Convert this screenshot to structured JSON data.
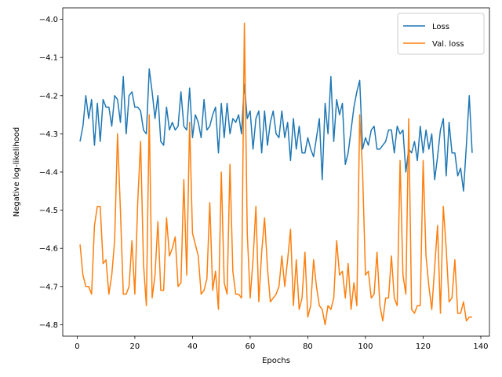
{
  "chart_data": {
    "type": "line",
    "title": "",
    "xlabel": "Epochs",
    "ylabel": "Negative log-likelihood",
    "xlim": [
      -5,
      143
    ],
    "ylim": [
      -4.83,
      -3.97
    ],
    "xticks": [
      0,
      20,
      40,
      60,
      80,
      100,
      120,
      140
    ],
    "yticks": [
      -4.8,
      -4.7,
      -4.6,
      -4.5,
      -4.4,
      -4.3,
      -4.2,
      -4.1,
      -4.0
    ],
    "ytick_labels": [
      "−4.8",
      "−4.7",
      "−4.6",
      "−4.5",
      "−4.4",
      "−4.3",
      "−4.2",
      "−4.1",
      "−4.0"
    ],
    "legend_position": "upper-right",
    "grid": false,
    "colors": {
      "loss": "#1f77b4",
      "val_loss": "#ff7f0e"
    },
    "x_start": 1,
    "series": [
      {
        "name": "Loss",
        "values": [
          -4.32,
          -4.28,
          -4.2,
          -4.26,
          -4.21,
          -4.33,
          -4.22,
          -4.32,
          -4.21,
          -4.23,
          -4.23,
          -4.28,
          -4.2,
          -4.21,
          -4.27,
          -4.15,
          -4.3,
          -4.2,
          -4.19,
          -4.23,
          -4.23,
          -4.24,
          -4.29,
          -4.3,
          -4.13,
          -4.19,
          -4.26,
          -4.2,
          -4.32,
          -4.33,
          -4.23,
          -4.29,
          -4.27,
          -4.29,
          -4.28,
          -4.19,
          -4.28,
          -4.29,
          -4.18,
          -4.31,
          -4.25,
          -4.27,
          -4.31,
          -4.21,
          -4.29,
          -4.28,
          -4.25,
          -4.23,
          -4.35,
          -4.22,
          -4.31,
          -4.22,
          -4.3,
          -4.26,
          -4.27,
          -4.25,
          -4.3,
          -4.17,
          -4.26,
          -4.24,
          -4.34,
          -4.26,
          -4.24,
          -4.35,
          -4.24,
          -4.33,
          -4.27,
          -4.24,
          -4.3,
          -4.31,
          -4.24,
          -4.31,
          -4.27,
          -4.37,
          -4.26,
          -4.34,
          -4.28,
          -4.35,
          -4.35,
          -4.31,
          -4.34,
          -4.36,
          -4.31,
          -4.26,
          -4.42,
          -4.22,
          -4.3,
          -4.15,
          -4.32,
          -4.21,
          -4.25,
          -4.22,
          -4.38,
          -4.35,
          -4.29,
          -4.23,
          -4.19,
          -4.16,
          -4.34,
          -4.31,
          -4.33,
          -4.29,
          -4.28,
          -4.34,
          -4.34,
          -4.33,
          -4.32,
          -4.29,
          -4.29,
          -4.35,
          -4.28,
          -4.3,
          -4.29,
          -4.4,
          -4.34,
          -4.35,
          -4.32,
          -4.37,
          -4.28,
          -4.35,
          -4.29,
          -4.34,
          -4.3,
          -4.42,
          -4.36,
          -4.29,
          -4.26,
          -4.41,
          -4.27,
          -4.35,
          -4.35,
          -4.41,
          -4.39,
          -4.45,
          -4.33,
          -4.2,
          -4.35
        ]
      },
      {
        "name": "Val. loss",
        "values": [
          -4.59,
          -4.67,
          -4.7,
          -4.7,
          -4.72,
          -4.54,
          -4.49,
          -4.49,
          -4.64,
          -4.63,
          -4.72,
          -4.67,
          -4.58,
          -4.3,
          -4.5,
          -4.72,
          -4.72,
          -4.7,
          -4.58,
          -4.72,
          -4.48,
          -4.32,
          -4.64,
          -4.75,
          -4.25,
          -4.73,
          -4.67,
          -4.53,
          -4.71,
          -4.71,
          -4.52,
          -4.62,
          -4.6,
          -4.57,
          -4.7,
          -4.69,
          -4.42,
          -4.67,
          -4.27,
          -4.56,
          -4.59,
          -4.62,
          -4.72,
          -4.71,
          -4.68,
          -4.48,
          -4.71,
          -4.66,
          -4.76,
          -4.4,
          -4.69,
          -4.72,
          -4.38,
          -4.66,
          -4.72,
          -4.72,
          -4.73,
          -4.01,
          -4.56,
          -4.73,
          -4.63,
          -4.49,
          -4.74,
          -4.61,
          -4.52,
          -4.65,
          -4.74,
          -4.73,
          -4.72,
          -4.7,
          -4.62,
          -4.7,
          -4.63,
          -4.55,
          -4.75,
          -4.63,
          -4.76,
          -4.73,
          -4.61,
          -4.78,
          -4.75,
          -4.63,
          -4.7,
          -4.75,
          -4.76,
          -4.8,
          -4.75,
          -4.76,
          -4.73,
          -4.58,
          -4.67,
          -4.66,
          -4.73,
          -4.64,
          -4.76,
          -4.69,
          -4.75,
          -4.25,
          -4.4,
          -4.67,
          -4.66,
          -4.73,
          -4.72,
          -4.61,
          -4.75,
          -4.79,
          -4.73,
          -4.73,
          -4.62,
          -4.73,
          -4.75,
          -4.37,
          -4.67,
          -4.72,
          -4.26,
          -4.76,
          -4.77,
          -4.75,
          -4.75,
          -4.37,
          -4.62,
          -4.7,
          -4.76,
          -4.65,
          -4.54,
          -4.77,
          -4.49,
          -4.6,
          -4.74,
          -4.73,
          -4.63,
          -4.77,
          -4.77,
          -4.74,
          -4.79,
          -4.78,
          -4.78
        ]
      }
    ]
  }
}
